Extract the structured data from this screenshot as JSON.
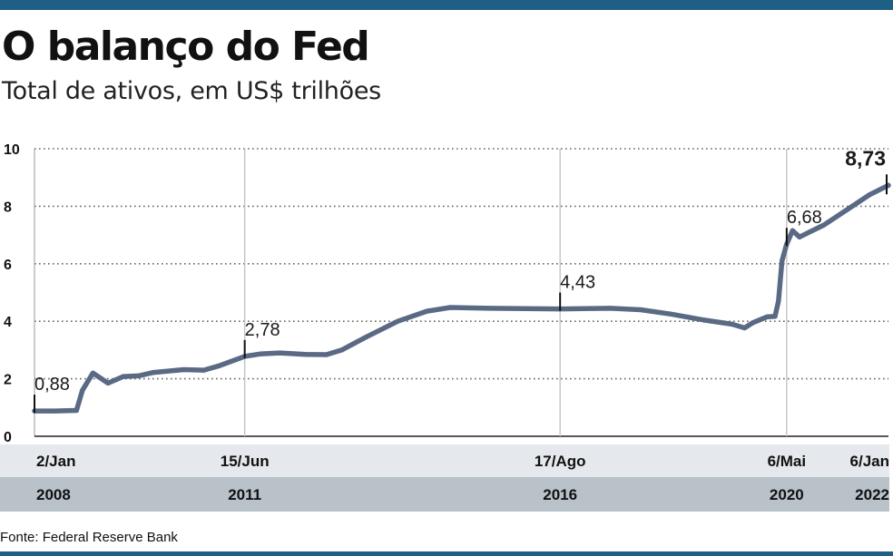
{
  "title": "O balanço do Fed",
  "subtitle": "Total de ativos, em US$ trilhões",
  "source": "Fonte: Federal Reserve Bank",
  "colors": {
    "brand": "#1f5f86",
    "line": "#5a6a84",
    "band_light": "#e5e8ec",
    "band_dark": "#b9c1c9"
  },
  "chart_data": {
    "type": "line",
    "title": "O balanço do Fed",
    "subtitle": "Total de ativos, em US$ trilhões",
    "xlabel": "",
    "ylabel": "",
    "ylim": [
      0,
      10
    ],
    "xlim": [
      "2008-01-02",
      "2022-01-06"
    ],
    "grid": true,
    "yticks": [
      "0",
      "2",
      "4",
      "6",
      "8",
      "10"
    ],
    "date_ticks": [
      {
        "date": "2008-01-02",
        "day": "2/Jan",
        "year": "2008"
      },
      {
        "date": "2011-06-15",
        "day": "15/Jun",
        "year": "2011"
      },
      {
        "date": "2016-08-17",
        "day": "17/Ago",
        "year": "2016"
      },
      {
        "date": "2020-05-06",
        "day": "6/Mai",
        "year": "2020"
      },
      {
        "date": "2022-01-06",
        "day": "6/Jan",
        "year": "2022"
      }
    ],
    "annotations": [
      {
        "date": "2008-01-02",
        "value": 0.88,
        "label": "0,88",
        "bold": false
      },
      {
        "date": "2011-06-15",
        "value": 2.78,
        "label": "2,78",
        "bold": false
      },
      {
        "date": "2016-08-17",
        "value": 4.43,
        "label": "4,43",
        "bold": false
      },
      {
        "date": "2020-05-06",
        "value": 6.68,
        "label": "6,68",
        "bold": false
      },
      {
        "date": "2022-01-06",
        "value": 8.73,
        "label": "8,73",
        "bold": true
      }
    ],
    "series": [
      {
        "values": [
          [
            "2008-01-02",
            0.88
          ],
          [
            "2008-05-01",
            0.88
          ],
          [
            "2008-09-10",
            0.9
          ],
          [
            "2008-10-15",
            1.6
          ],
          [
            "2008-12-17",
            2.2
          ],
          [
            "2009-03-18",
            1.85
          ],
          [
            "2009-06-17",
            2.08
          ],
          [
            "2009-09-16",
            2.1
          ],
          [
            "2009-12-16",
            2.22
          ],
          [
            "2010-06-16",
            2.32
          ],
          [
            "2010-10-13",
            2.3
          ],
          [
            "2011-01-12",
            2.45
          ],
          [
            "2011-06-15",
            2.78
          ],
          [
            "2011-09-14",
            2.86
          ],
          [
            "2012-01-11",
            2.9
          ],
          [
            "2012-06-13",
            2.85
          ],
          [
            "2012-10-17",
            2.84
          ],
          [
            "2013-01-16",
            3.0
          ],
          [
            "2013-06-12",
            3.45
          ],
          [
            "2013-12-18",
            4.0
          ],
          [
            "2014-06-11",
            4.35
          ],
          [
            "2014-10-29",
            4.48
          ],
          [
            "2015-06-17",
            4.45
          ],
          [
            "2016-08-17",
            4.43
          ],
          [
            "2017-06-14",
            4.45
          ],
          [
            "2017-12-13",
            4.4
          ],
          [
            "2018-06-13",
            4.25
          ],
          [
            "2018-12-19",
            4.05
          ],
          [
            "2019-06-12",
            3.9
          ],
          [
            "2019-08-28",
            3.77
          ],
          [
            "2019-10-16",
            3.95
          ],
          [
            "2020-01-08",
            4.15
          ],
          [
            "2020-02-26",
            4.17
          ],
          [
            "2020-03-18",
            4.7
          ],
          [
            "2020-04-08",
            6.1
          ],
          [
            "2020-05-06",
            6.68
          ],
          [
            "2020-06-10",
            7.15
          ],
          [
            "2020-07-22",
            6.93
          ],
          [
            "2020-12-16",
            7.35
          ],
          [
            "2021-06-16",
            8.05
          ],
          [
            "2021-09-15",
            8.4
          ],
          [
            "2022-01-06",
            8.73
          ]
        ]
      }
    ]
  }
}
